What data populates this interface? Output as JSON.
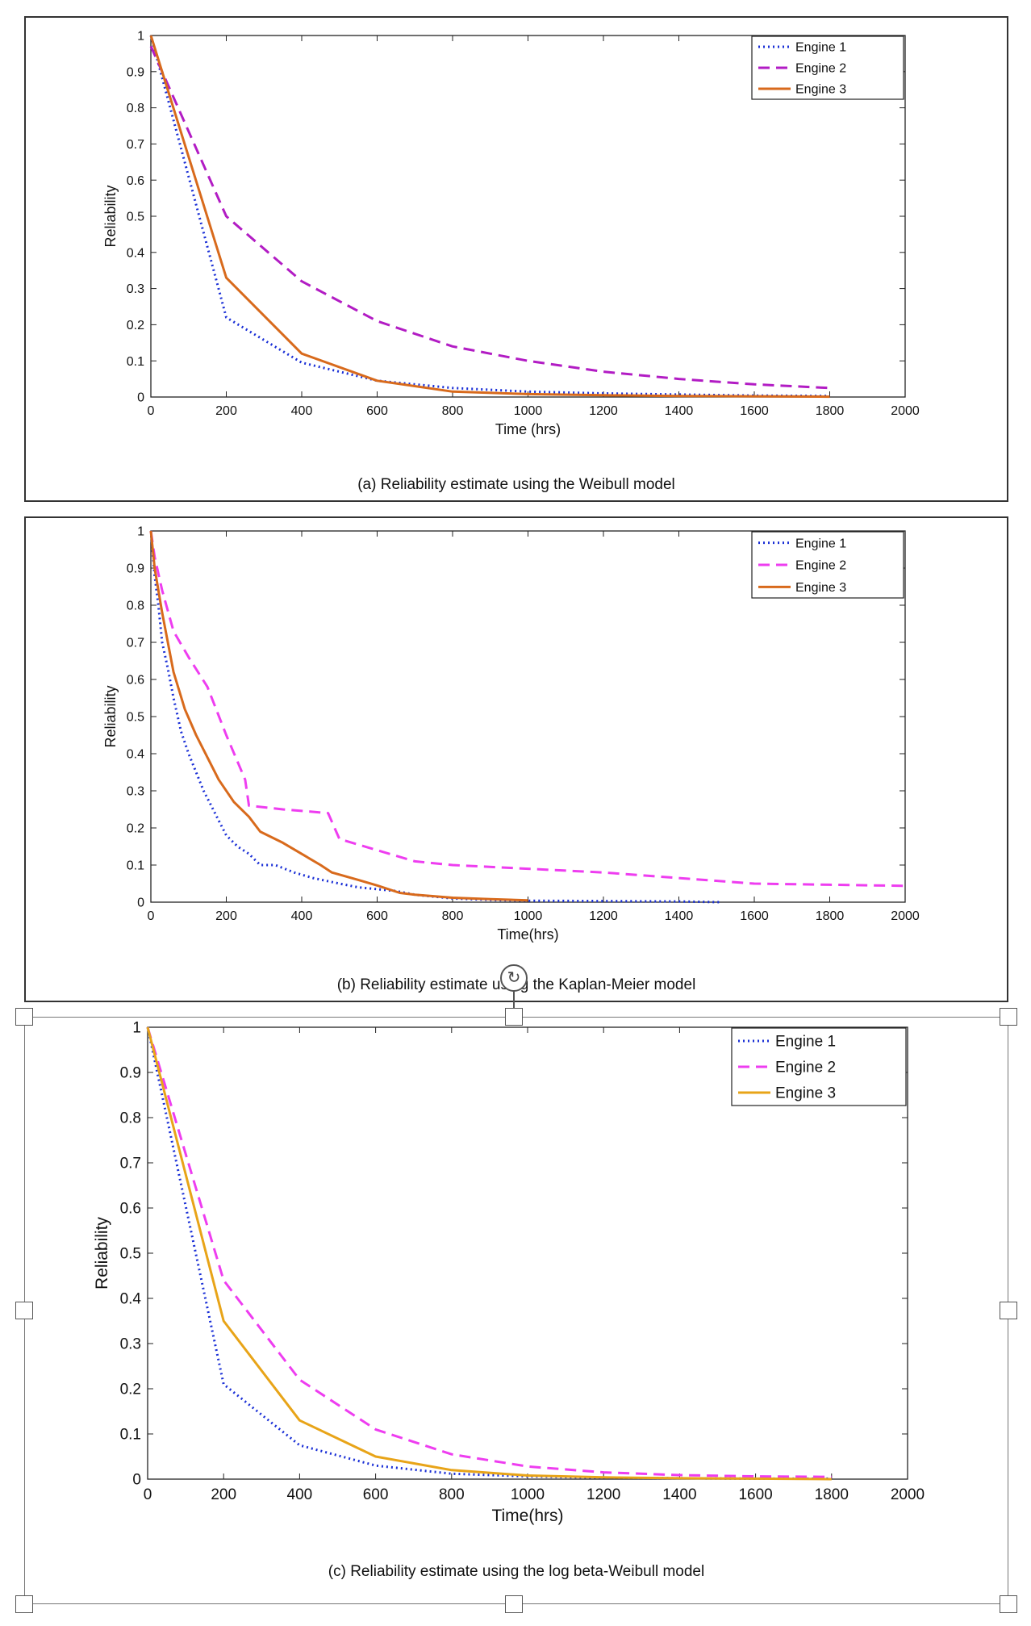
{
  "panels": [
    {
      "caption": "(a) Reliability estimate using the Weibull model"
    },
    {
      "caption": "(b) Reliability estimate using the Kaplan-Meier model"
    },
    {
      "caption": "(c) Reliability estimate using the log beta-Weibull model"
    }
  ],
  "selection": {
    "rotate_icon": "rotate-icon"
  },
  "chart_data": [
    {
      "type": "line",
      "title": "",
      "xlabel": "Time (hrs)",
      "ylabel": "Reliability",
      "xlim": [
        0,
        2000
      ],
      "ylim": [
        0,
        1
      ],
      "xticks": [
        0,
        200,
        400,
        600,
        800,
        1000,
        1200,
        1400,
        1600,
        1800,
        2000
      ],
      "yticks": [
        0,
        0.1,
        0.2,
        0.3,
        0.4,
        0.5,
        0.6,
        0.7,
        0.8,
        0.9,
        1
      ],
      "legend_position": "top-right",
      "grid": false,
      "series": [
        {
          "name": "Engine 1",
          "color": "#1a2fd6",
          "dash": "dotted",
          "x": [
            0,
            200,
            400,
            600,
            800,
            1000,
            1200,
            1400,
            1600,
            1800
          ],
          "y": [
            1.0,
            0.22,
            0.095,
            0.045,
            0.025,
            0.015,
            0.01,
            0.007,
            0.004,
            0.003
          ]
        },
        {
          "name": "Engine 2",
          "color": "#b21cc4",
          "dash": "dashed",
          "x": [
            0,
            200,
            400,
            600,
            800,
            1000,
            1200,
            1400,
            1600,
            1800
          ],
          "y": [
            0.97,
            0.5,
            0.32,
            0.21,
            0.14,
            0.1,
            0.07,
            0.05,
            0.035,
            0.025
          ]
        },
        {
          "name": "Engine 3",
          "color": "#d86a1c",
          "dash": "solid",
          "x": [
            0,
            200,
            400,
            600,
            800,
            1000,
            1200,
            1400,
            1600,
            1800
          ],
          "y": [
            1.0,
            0.33,
            0.12,
            0.045,
            0.015,
            0.008,
            0.005,
            0.003,
            0.002,
            0.001
          ]
        }
      ]
    },
    {
      "type": "line",
      "title": "",
      "xlabel": "Time(hrs)",
      "ylabel": "Reliability",
      "xlim": [
        0,
        2000
      ],
      "ylim": [
        0,
        1
      ],
      "xticks": [
        0,
        200,
        400,
        600,
        800,
        1000,
        1200,
        1400,
        1600,
        1800,
        2000
      ],
      "yticks": [
        0,
        0.1,
        0.2,
        0.3,
        0.4,
        0.5,
        0.6,
        0.7,
        0.8,
        0.9,
        1
      ],
      "legend_position": "top-right",
      "grid": false,
      "series": [
        {
          "name": "Engine 1",
          "color": "#1a2fd6",
          "dash": "dotted",
          "x": [
            0,
            10,
            20,
            30,
            45,
            60,
            80,
            100,
            120,
            140,
            160,
            180,
            200,
            230,
            260,
            290,
            330,
            380,
            430,
            500,
            550,
            600,
            650,
            700,
            800,
            900,
            1000,
            1200,
            1400,
            1510
          ],
          "y": [
            1.0,
            0.88,
            0.8,
            0.7,
            0.63,
            0.55,
            0.46,
            0.4,
            0.35,
            0.3,
            0.26,
            0.22,
            0.18,
            0.15,
            0.13,
            0.1,
            0.1,
            0.08,
            0.065,
            0.05,
            0.04,
            0.035,
            0.03,
            0.02,
            0.01,
            0.006,
            0.004,
            0.003,
            0.002,
            0.0
          ]
        },
        {
          "name": "Engine 2",
          "color": "#ee3df0",
          "dash": "dashed",
          "x": [
            0,
            10,
            30,
            60,
            100,
            150,
            200,
            250,
            260,
            350,
            470,
            500,
            600,
            700,
            800,
            1000,
            1200,
            1400,
            1600,
            1800,
            2000
          ],
          "y": [
            1.0,
            0.93,
            0.84,
            0.73,
            0.66,
            0.58,
            0.45,
            0.33,
            0.26,
            0.25,
            0.24,
            0.17,
            0.14,
            0.11,
            0.1,
            0.09,
            0.08,
            0.065,
            0.05,
            0.047,
            0.044
          ]
        },
        {
          "name": "Engine 3",
          "color": "#d86a1c",
          "dash": "solid",
          "x": [
            0,
            10,
            30,
            60,
            90,
            120,
            150,
            180,
            220,
            260,
            290,
            350,
            400,
            450,
            480,
            550,
            600,
            660,
            700,
            800,
            900,
            1000
          ],
          "y": [
            1.0,
            0.9,
            0.78,
            0.62,
            0.52,
            0.45,
            0.39,
            0.33,
            0.27,
            0.23,
            0.19,
            0.16,
            0.13,
            0.1,
            0.08,
            0.06,
            0.045,
            0.025,
            0.02,
            0.012,
            0.008,
            0.005
          ]
        }
      ]
    },
    {
      "type": "line",
      "title": "",
      "xlabel": "Time(hrs)",
      "ylabel": "Reliability",
      "xlim": [
        0,
        2000
      ],
      "ylim": [
        0,
        1
      ],
      "xticks": [
        0,
        200,
        400,
        600,
        800,
        1000,
        1200,
        1400,
        1600,
        1800,
        2000
      ],
      "yticks": [
        0,
        0.1,
        0.2,
        0.3,
        0.4,
        0.5,
        0.6,
        0.7,
        0.8,
        0.9,
        1
      ],
      "legend_position": "top-right",
      "grid": false,
      "series": [
        {
          "name": "Engine 1",
          "color": "#1a2fd6",
          "dash": "dotted",
          "x": [
            0,
            200,
            400,
            600,
            800,
            1000,
            1200,
            1400,
            1600,
            1800
          ],
          "y": [
            1.0,
            0.21,
            0.075,
            0.03,
            0.012,
            0.006,
            0.003,
            0.002,
            0.001,
            0.001
          ]
        },
        {
          "name": "Engine 2",
          "color": "#ee3df0",
          "dash": "dashed",
          "x": [
            0,
            200,
            400,
            600,
            800,
            1000,
            1200,
            1400,
            1600,
            1800
          ],
          "y": [
            1.0,
            0.44,
            0.22,
            0.11,
            0.055,
            0.028,
            0.015,
            0.009,
            0.006,
            0.005
          ]
        },
        {
          "name": "Engine 3",
          "color": "#e8a418",
          "dash": "solid",
          "x": [
            0,
            200,
            400,
            600,
            800,
            1000,
            1200,
            1400,
            1600,
            1800
          ],
          "y": [
            1.0,
            0.35,
            0.13,
            0.05,
            0.02,
            0.008,
            0.004,
            0.002,
            0.001,
            0.0
          ]
        }
      ]
    }
  ]
}
